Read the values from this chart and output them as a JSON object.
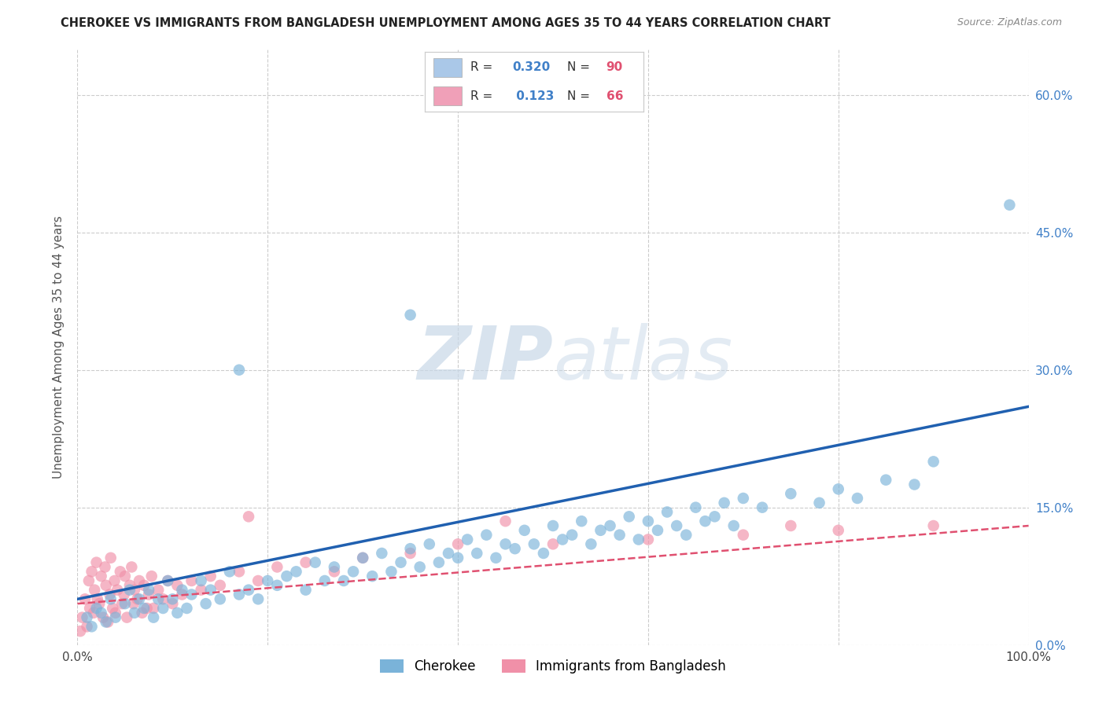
{
  "title": "CHEROKEE VS IMMIGRANTS FROM BANGLADESH UNEMPLOYMENT AMONG AGES 35 TO 44 YEARS CORRELATION CHART",
  "source": "Source: ZipAtlas.com",
  "ylabel": "Unemployment Among Ages 35 to 44 years",
  "xlim": [
    0,
    100
  ],
  "ylim": [
    0,
    65
  ],
  "xtick_vals": [
    0,
    20,
    40,
    60,
    80,
    100
  ],
  "xtick_labels": [
    "0.0%",
    "",
    "",
    "",
    "",
    "100.0%"
  ],
  "ytick_vals": [
    0,
    15,
    30,
    45,
    60
  ],
  "ytick_labels_right": [
    "0.0%",
    "15.0%",
    "30.0%",
    "45.0%",
    "60.0%"
  ],
  "cherokee_color": "#7ab3d9",
  "bangladesh_color": "#f090a8",
  "cherokee_line_color": "#2060b0",
  "bangladesh_line_color": "#e05070",
  "legend_box_ck": "#aac8e8",
  "legend_box_bg": "#f0a0b8",
  "legend_R_color": "#4080c8",
  "legend_N_color": "#e05070",
  "watermark_color": "#c8d8e8",
  "background_color": "#ffffff",
  "grid_color": "#cccccc",
  "cherokee_line_x0": 0,
  "cherokee_line_y0": 5.0,
  "cherokee_line_x1": 100,
  "cherokee_line_y1": 26.0,
  "bangladesh_line_x0": 0,
  "bangladesh_line_y0": 4.5,
  "bangladesh_line_x1": 100,
  "bangladesh_line_y1": 13.0,
  "cherokee_scatter": [
    [
      1.0,
      3.0
    ],
    [
      1.5,
      2.0
    ],
    [
      2.0,
      4.0
    ],
    [
      2.5,
      3.5
    ],
    [
      3.0,
      2.5
    ],
    [
      3.5,
      5.0
    ],
    [
      4.0,
      3.0
    ],
    [
      5.0,
      4.5
    ],
    [
      5.5,
      6.0
    ],
    [
      6.0,
      3.5
    ],
    [
      6.5,
      5.0
    ],
    [
      7.0,
      4.0
    ],
    [
      7.5,
      6.0
    ],
    [
      8.0,
      3.0
    ],
    [
      8.5,
      5.0
    ],
    [
      9.0,
      4.0
    ],
    [
      9.5,
      7.0
    ],
    [
      10.0,
      5.0
    ],
    [
      10.5,
      3.5
    ],
    [
      11.0,
      6.0
    ],
    [
      11.5,
      4.0
    ],
    [
      12.0,
      5.5
    ],
    [
      13.0,
      7.0
    ],
    [
      13.5,
      4.5
    ],
    [
      14.0,
      6.0
    ],
    [
      15.0,
      5.0
    ],
    [
      16.0,
      8.0
    ],
    [
      17.0,
      5.5
    ],
    [
      18.0,
      6.0
    ],
    [
      19.0,
      5.0
    ],
    [
      20.0,
      7.0
    ],
    [
      21.0,
      6.5
    ],
    [
      22.0,
      7.5
    ],
    [
      23.0,
      8.0
    ],
    [
      24.0,
      6.0
    ],
    [
      25.0,
      9.0
    ],
    [
      26.0,
      7.0
    ],
    [
      27.0,
      8.5
    ],
    [
      28.0,
      7.0
    ],
    [
      29.0,
      8.0
    ],
    [
      30.0,
      9.5
    ],
    [
      31.0,
      7.5
    ],
    [
      32.0,
      10.0
    ],
    [
      33.0,
      8.0
    ],
    [
      34.0,
      9.0
    ],
    [
      35.0,
      10.5
    ],
    [
      36.0,
      8.5
    ],
    [
      37.0,
      11.0
    ],
    [
      38.0,
      9.0
    ],
    [
      39.0,
      10.0
    ],
    [
      40.0,
      9.5
    ],
    [
      41.0,
      11.5
    ],
    [
      42.0,
      10.0
    ],
    [
      43.0,
      12.0
    ],
    [
      44.0,
      9.5
    ],
    [
      45.0,
      11.0
    ],
    [
      46.0,
      10.5
    ],
    [
      47.0,
      12.5
    ],
    [
      48.0,
      11.0
    ],
    [
      49.0,
      10.0
    ],
    [
      50.0,
      13.0
    ],
    [
      51.0,
      11.5
    ],
    [
      52.0,
      12.0
    ],
    [
      53.0,
      13.5
    ],
    [
      54.0,
      11.0
    ],
    [
      55.0,
      12.5
    ],
    [
      56.0,
      13.0
    ],
    [
      57.0,
      12.0
    ],
    [
      58.0,
      14.0
    ],
    [
      59.0,
      11.5
    ],
    [
      60.0,
      13.5
    ],
    [
      61.0,
      12.5
    ],
    [
      62.0,
      14.5
    ],
    [
      63.0,
      13.0
    ],
    [
      64.0,
      12.0
    ],
    [
      65.0,
      15.0
    ],
    [
      66.0,
      13.5
    ],
    [
      67.0,
      14.0
    ],
    [
      68.0,
      15.5
    ],
    [
      69.0,
      13.0
    ],
    [
      70.0,
      16.0
    ],
    [
      72.0,
      15.0
    ],
    [
      75.0,
      16.5
    ],
    [
      78.0,
      15.5
    ],
    [
      80.0,
      17.0
    ],
    [
      82.0,
      16.0
    ],
    [
      85.0,
      18.0
    ],
    [
      88.0,
      17.5
    ],
    [
      90.0,
      20.0
    ],
    [
      17.0,
      30.0
    ],
    [
      35.0,
      36.0
    ],
    [
      98.0,
      48.0
    ]
  ],
  "bangladesh_scatter": [
    [
      0.3,
      1.5
    ],
    [
      0.5,
      3.0
    ],
    [
      0.8,
      5.0
    ],
    [
      1.0,
      2.0
    ],
    [
      1.2,
      7.0
    ],
    [
      1.3,
      4.0
    ],
    [
      1.5,
      8.0
    ],
    [
      1.7,
      3.5
    ],
    [
      1.8,
      6.0
    ],
    [
      2.0,
      9.0
    ],
    [
      2.1,
      5.0
    ],
    [
      2.3,
      4.5
    ],
    [
      2.5,
      7.5
    ],
    [
      2.7,
      3.0
    ],
    [
      2.9,
      8.5
    ],
    [
      3.0,
      6.5
    ],
    [
      3.2,
      2.5
    ],
    [
      3.4,
      5.5
    ],
    [
      3.5,
      9.5
    ],
    [
      3.7,
      4.0
    ],
    [
      3.9,
      7.0
    ],
    [
      4.0,
      3.5
    ],
    [
      4.2,
      6.0
    ],
    [
      4.5,
      8.0
    ],
    [
      4.7,
      4.5
    ],
    [
      4.9,
      5.5
    ],
    [
      5.0,
      7.5
    ],
    [
      5.2,
      3.0
    ],
    [
      5.5,
      6.5
    ],
    [
      5.7,
      8.5
    ],
    [
      5.9,
      4.5
    ],
    [
      6.0,
      6.0
    ],
    [
      6.3,
      5.0
    ],
    [
      6.5,
      7.0
    ],
    [
      6.8,
      3.5
    ],
    [
      7.0,
      6.5
    ],
    [
      7.3,
      4.0
    ],
    [
      7.5,
      5.5
    ],
    [
      7.8,
      7.5
    ],
    [
      8.0,
      4.0
    ],
    [
      8.5,
      6.0
    ],
    [
      9.0,
      5.0
    ],
    [
      9.5,
      7.0
    ],
    [
      10.0,
      4.5
    ],
    [
      10.5,
      6.5
    ],
    [
      11.0,
      5.5
    ],
    [
      12.0,
      7.0
    ],
    [
      13.0,
      6.0
    ],
    [
      14.0,
      7.5
    ],
    [
      15.0,
      6.5
    ],
    [
      17.0,
      8.0
    ],
    [
      19.0,
      7.0
    ],
    [
      21.0,
      8.5
    ],
    [
      24.0,
      9.0
    ],
    [
      27.0,
      8.0
    ],
    [
      30.0,
      9.5
    ],
    [
      35.0,
      10.0
    ],
    [
      40.0,
      11.0
    ],
    [
      50.0,
      11.0
    ],
    [
      60.0,
      11.5
    ],
    [
      70.0,
      12.0
    ],
    [
      75.0,
      13.0
    ],
    [
      80.0,
      12.5
    ],
    [
      90.0,
      13.0
    ],
    [
      18.0,
      14.0
    ],
    [
      45.0,
      13.5
    ]
  ]
}
